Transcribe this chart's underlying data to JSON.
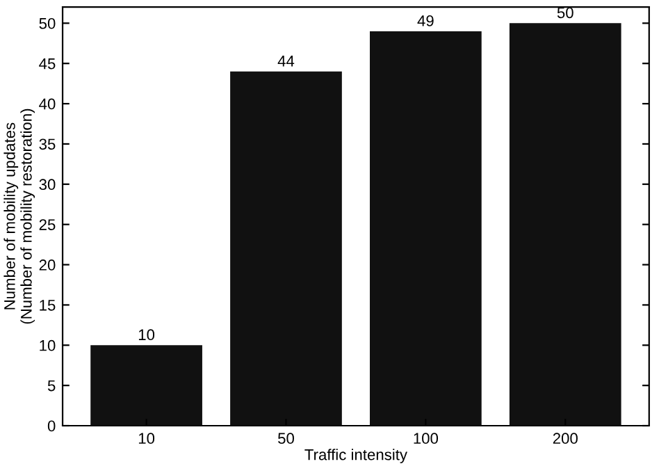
{
  "chart_data": {
    "type": "bar",
    "xlabel": "Traffic intensity",
    "ylabel": "Number of mobility updates\n(Number of mobility restoration)",
    "categories": [
      "10",
      "50",
      "100",
      "200"
    ],
    "values": [
      10,
      44,
      49,
      50
    ],
    "color": "#111111",
    "ylim": [
      0,
      52
    ],
    "yticks": [
      0,
      5,
      10,
      15,
      20,
      25,
      30,
      35,
      40,
      45,
      50
    ],
    "grid": false,
    "data_labels": true
  }
}
